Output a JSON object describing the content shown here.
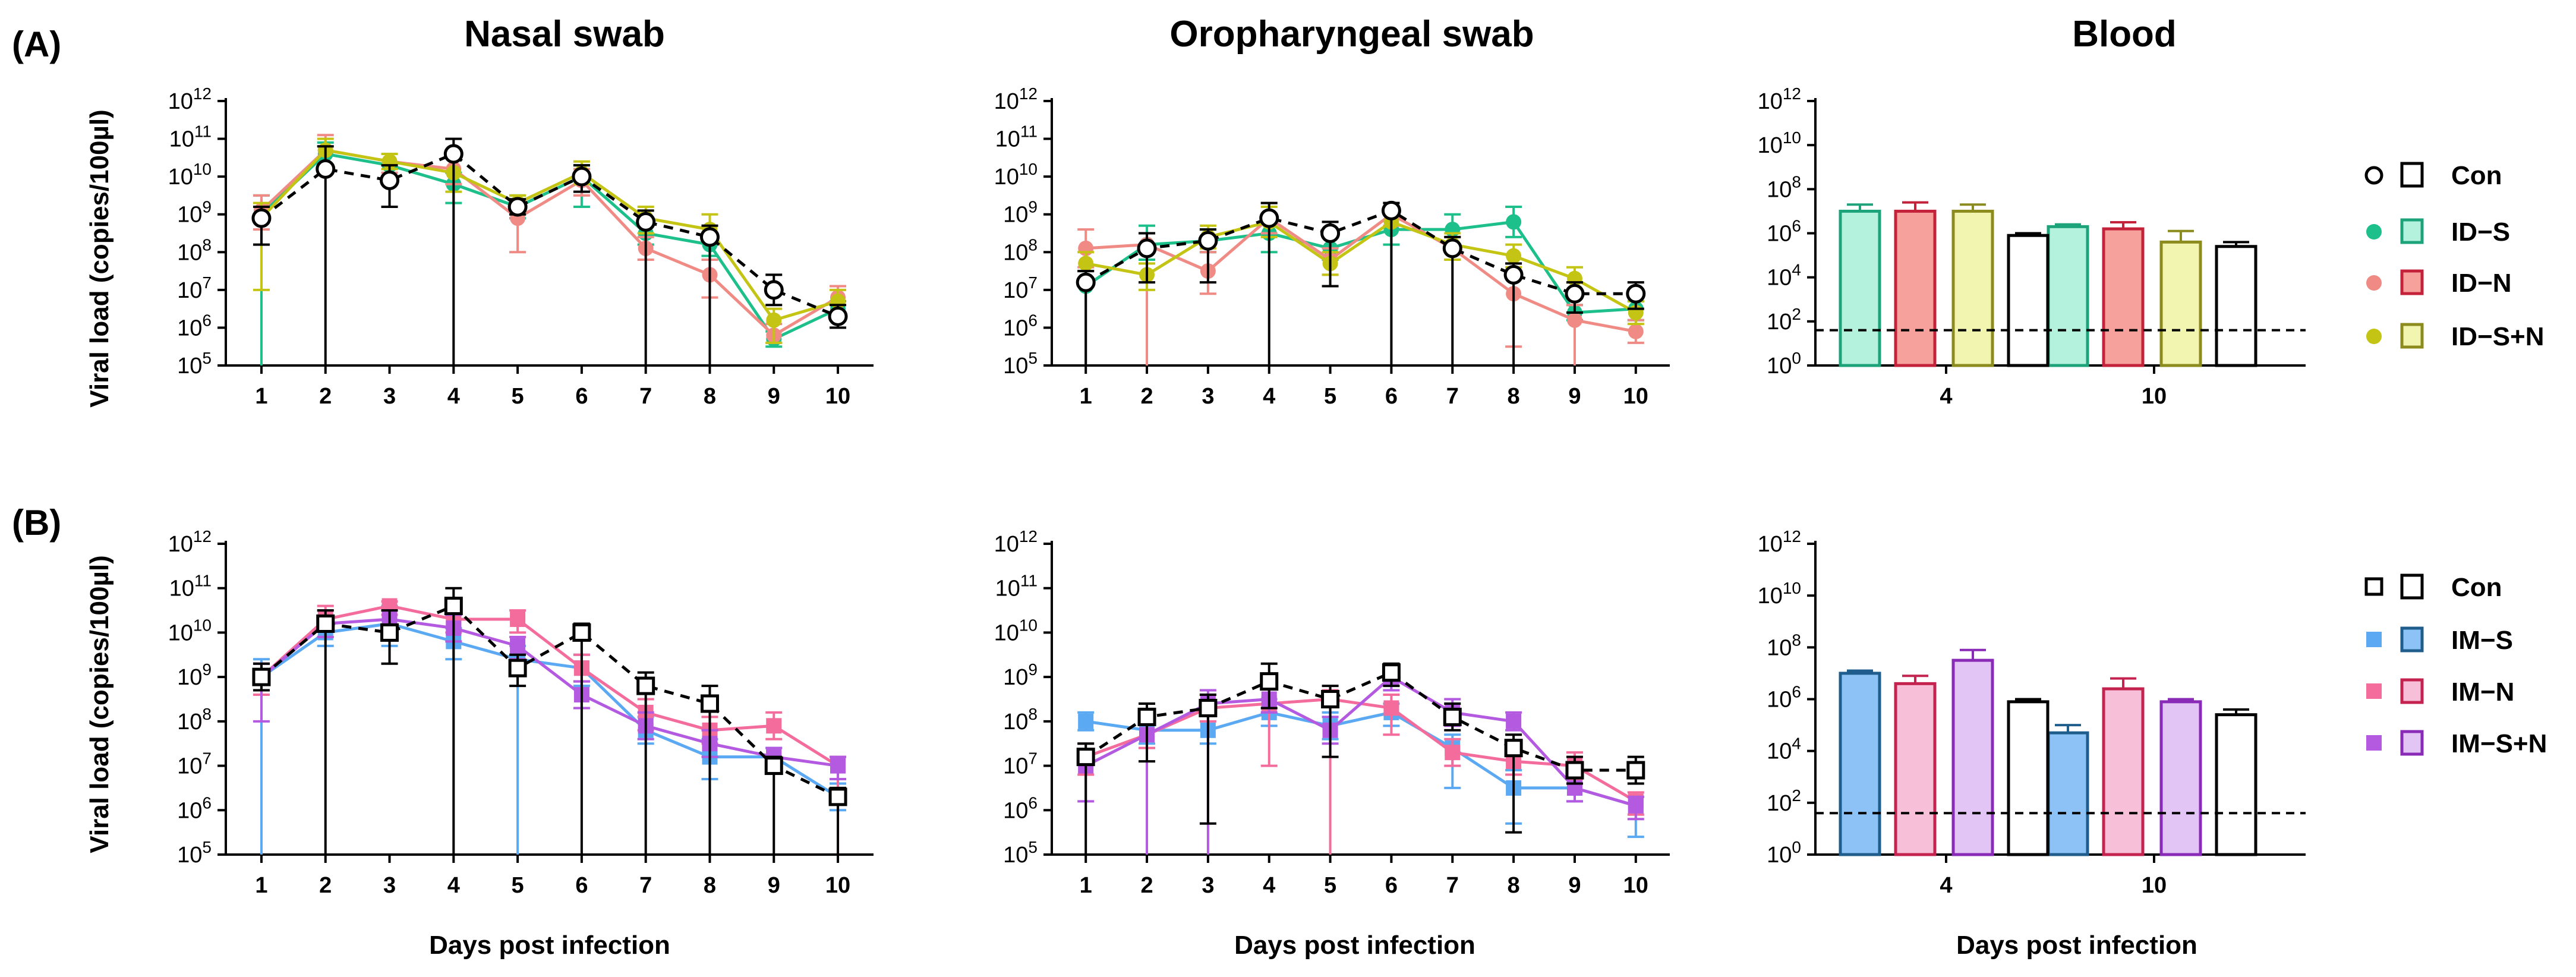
{
  "panel_labels": [
    "(A)",
    "(B)"
  ],
  "column_titles": [
    "Nasal swab",
    "Oropharyngeal swab",
    "Blood"
  ],
  "y_axis_label": "Viral load (copies/100µl)",
  "x_axis_label": "Days post infection",
  "legend_A": [
    {
      "name": "Con",
      "color": "#000000",
      "marker": "circle-open"
    },
    {
      "name": "ID−S",
      "color": "#1DBF8A",
      "marker": "circle"
    },
    {
      "name": "ID−N",
      "color": "#F08A84",
      "marker": "circle"
    },
    {
      "name": "ID−S+N",
      "color": "#C4C414",
      "marker": "circle"
    }
  ],
  "legend_B": [
    {
      "name": "Con",
      "color": "#000000",
      "marker": "square-open"
    },
    {
      "name": "IM−S",
      "color": "#5AA9F2",
      "marker": "square"
    },
    {
      "name": "IM−N",
      "color": "#F46C9C",
      "marker": "square"
    },
    {
      "name": "IM−S+N",
      "color": "#B35AE0",
      "marker": "square"
    }
  ],
  "bar_styles": {
    "Con": {
      "fill": "#FFFFFF",
      "stroke": "#000000"
    },
    "ID−S": {
      "fill": "#B5F2DD",
      "stroke": "#1DA37A"
    },
    "ID−N": {
      "fill": "#F7A19C",
      "stroke": "#C4223A"
    },
    "ID−S+N": {
      "fill": "#F2F5B0",
      "stroke": "#8C8C1E"
    },
    "IM−S": {
      "fill": "#8CC2F5",
      "stroke": "#1F5E8C"
    },
    "IM−N": {
      "fill": "#F8BFD8",
      "stroke": "#C4224F"
    },
    "IM−S+N": {
      "fill": "#E3C5F5",
      "stroke": "#8A2BB8"
    }
  },
  "chart_data": [
    {
      "id": "A-nasal",
      "type": "line",
      "title": "Nasal swab",
      "xlabel": "",
      "ylabel": "Viral load (copies/100µl)",
      "x": [
        1,
        2,
        3,
        4,
        5,
        6,
        7,
        8,
        9,
        10
      ],
      "y_scale": "log10",
      "ylim_exp": [
        5,
        12
      ],
      "y_tick_labels": [
        "10^5",
        "10^6",
        "10^7",
        "10^8",
        "10^9",
        "10^10",
        "10^11",
        "10^12"
      ],
      "series": [
        {
          "name": "ID−S",
          "color": "#1DBF8A",
          "marker": "circle",
          "log10_values": [
            9.0,
            10.6,
            10.3,
            9.8,
            9.2,
            10.0,
            8.5,
            8.2,
            5.7,
            6.5
          ],
          "err_up": [
            0.5,
            0.3,
            0.3,
            0.3,
            0.3,
            0.3,
            0.3,
            0.3,
            0.2,
            0.2
          ],
          "err_down_to_exp": [
            5,
            10.3,
            10.0,
            9.3,
            8.9,
            9.2,
            8.2,
            7.9,
            5.5,
            6.3
          ]
        },
        {
          "name": "ID−N",
          "color": "#F08A84",
          "marker": "circle",
          "log10_values": [
            9.1,
            10.7,
            10.4,
            10.2,
            8.9,
            9.9,
            8.1,
            7.4,
            5.8,
            6.8
          ],
          "err_up": [
            0.4,
            0.4,
            0.2,
            0.3,
            0.3,
            0.3,
            0.3,
            0.4,
            0.3,
            0.3
          ],
          "err_down_to_exp": [
            8.6,
            10.3,
            10.1,
            9.8,
            8.0,
            9.5,
            7.8,
            6.8,
            5.6,
            6.4
          ]
        },
        {
          "name": "ID−S+N",
          "color": "#C4C414",
          "marker": "circle",
          "log10_values": [
            8.9,
            10.7,
            10.4,
            10.1,
            9.3,
            10.1,
            8.9,
            8.6,
            6.2,
            6.7
          ],
          "err_up": [
            0.4,
            0.3,
            0.2,
            0.4,
            0.2,
            0.3,
            0.3,
            0.4,
            0.3,
            0.3
          ],
          "err_down_to_exp": [
            7.0,
            10.3,
            10.2,
            9.6,
            9.0,
            9.8,
            8.5,
            8.3,
            5.6,
            6.4
          ]
        },
        {
          "name": "Con",
          "color": "#000000",
          "marker": "circle-open",
          "dashed": true,
          "log10_values": [
            8.9,
            10.2,
            9.9,
            10.6,
            9.2,
            10.0,
            8.8,
            8.4,
            7.0,
            6.3
          ],
          "err_up": [
            0.3,
            0.6,
            0.4,
            0.4,
            0.2,
            0.3,
            0.3,
            0.3,
            0.4,
            0.3
          ],
          "err_down_to_exp": [
            8.2,
            5,
            9.2,
            5,
            9.0,
            9.6,
            5,
            5,
            6.6,
            6.0
          ]
        }
      ]
    },
    {
      "id": "A-oro",
      "type": "line",
      "title": "Oropharyngeal swab",
      "xlabel": "",
      "ylabel": "",
      "x": [
        1,
        2,
        3,
        4,
        5,
        6,
        7,
        8,
        9,
        10
      ],
      "y_scale": "log10",
      "ylim_exp": [
        5,
        12
      ],
      "y_tick_labels": [
        "10^5",
        "10^6",
        "10^7",
        "10^8",
        "10^9",
        "10^10",
        "10^11",
        "10^12"
      ],
      "series": [
        {
          "name": "ID−S",
          "color": "#1DBF8A",
          "marker": "circle",
          "log10_values": [
            7.1,
            8.2,
            8.3,
            8.5,
            8.1,
            8.6,
            8.6,
            8.8,
            6.4,
            6.5
          ],
          "err_up": [
            0.4,
            0.5,
            0.3,
            0.4,
            0.3,
            0.4,
            0.4,
            0.4,
            0.2,
            0.2
          ],
          "err_down_to_exp": [
            5,
            7.8,
            8.0,
            8.0,
            7.8,
            8.2,
            8.2,
            8.4,
            6.2,
            6.2
          ]
        },
        {
          "name": "ID−N",
          "color": "#F08A84",
          "marker": "circle",
          "log10_values": [
            8.1,
            8.2,
            7.5,
            8.9,
            7.8,
            9.0,
            8.1,
            6.9,
            6.2,
            5.9
          ],
          "err_up": [
            0.5,
            0.3,
            0.5,
            0.4,
            0.3,
            0.3,
            0.3,
            0.5,
            0.4,
            0.3
          ],
          "err_down_to_exp": [
            7.6,
            5,
            6.9,
            8.5,
            7.4,
            8.7,
            7.8,
            5.5,
            5,
            5.6
          ]
        },
        {
          "name": "ID−S+N",
          "color": "#C4C414",
          "marker": "circle",
          "log10_values": [
            7.7,
            7.4,
            8.4,
            8.8,
            7.7,
            8.8,
            8.2,
            7.9,
            7.3,
            6.4
          ],
          "err_up": [
            0.3,
            0.3,
            0.3,
            0.4,
            0.3,
            0.3,
            0.3,
            0.3,
            0.3,
            0.3
          ],
          "err_down_to_exp": [
            7.3,
            7.0,
            8.1,
            8.4,
            7.4,
            5,
            7.8,
            7.6,
            7.0,
            6.1
          ]
        },
        {
          "name": "Con",
          "color": "#000000",
          "marker": "circle-open",
          "dashed": true,
          "log10_values": [
            7.2,
            8.1,
            8.3,
            8.9,
            8.5,
            9.1,
            8.1,
            7.4,
            6.9,
            6.9
          ],
          "err_up": [
            0.3,
            0.4,
            0.3,
            0.4,
            0.3,
            0.2,
            0.3,
            0.3,
            0.3,
            0.3
          ],
          "err_down_to_exp": [
            5,
            7.2,
            7.2,
            5,
            7.1,
            5,
            5,
            5,
            6.4,
            6.5
          ]
        }
      ]
    },
    {
      "id": "A-blood",
      "type": "bar",
      "title": "Blood",
      "xlabel": "",
      "ylabel": "",
      "categories": [
        "4",
        "10"
      ],
      "y_scale": "log10",
      "ylim_exp": [
        0,
        12
      ],
      "y_tick_labels": [
        "10^0",
        "10^2",
        "10^4",
        "10^6",
        "10^8",
        "10^10",
        "10^12"
      ],
      "threshold_exp": 1.6,
      "series": [
        {
          "name": "ID−S",
          "log10_values": [
            7.0,
            6.3
          ],
          "err_up": [
            0.3,
            0.1
          ]
        },
        {
          "name": "ID−N",
          "log10_values": [
            7.0,
            6.2
          ],
          "err_up": [
            0.4,
            0.3
          ]
        },
        {
          "name": "ID−S+N",
          "log10_values": [
            7.0,
            5.6
          ],
          "err_up": [
            0.3,
            0.5
          ]
        },
        {
          "name": "Con",
          "log10_values": [
            5.9,
            5.4
          ],
          "err_up": [
            0.1,
            0.2
          ]
        }
      ]
    },
    {
      "id": "B-nasal",
      "type": "line",
      "title": "",
      "xlabel": "Days post infection",
      "ylabel": "Viral load (copies/100µl)",
      "x": [
        1,
        2,
        3,
        4,
        5,
        6,
        7,
        8,
        9,
        10
      ],
      "y_scale": "log10",
      "ylim_exp": [
        5,
        12
      ],
      "y_tick_labels": [
        "10^5",
        "10^6",
        "10^7",
        "10^8",
        "10^9",
        "10^10",
        "10^11",
        "10^12"
      ],
      "series": [
        {
          "name": "IM−S",
          "color": "#5AA9F2",
          "marker": "square",
          "log10_values": [
            9.0,
            10.0,
            10.2,
            9.8,
            9.4,
            9.2,
            7.8,
            7.2,
            7.2,
            6.3
          ],
          "err_up": [
            0.4,
            0.3,
            0.4,
            0.3,
            0.3,
            0.3,
            0.3,
            0.4,
            0.2,
            0.3
          ],
          "err_down_to_exp": [
            5,
            9.7,
            9.7,
            9.4,
            5,
            8.8,
            7.5,
            6.7,
            6.9,
            6.0
          ]
        },
        {
          "name": "IM−N",
          "color": "#F46C9C",
          "marker": "square",
          "log10_values": [
            9.0,
            10.3,
            10.6,
            10.3,
            10.3,
            9.2,
            8.2,
            7.8,
            7.9,
            7.0
          ],
          "err_up": [
            0.3,
            0.3,
            0.1,
            0.2,
            0.2,
            0.3,
            0.3,
            0.3,
            0.3,
            0.2
          ],
          "err_down_to_exp": [
            8.6,
            9.9,
            10.4,
            10.0,
            10.0,
            8.9,
            7.8,
            7.5,
            7.6,
            5
          ]
        },
        {
          "name": "IM−S+N",
          "color": "#B35AE0",
          "marker": "square",
          "log10_values": [
            9.0,
            10.2,
            10.3,
            10.1,
            9.7,
            8.6,
            7.9,
            7.5,
            7.2,
            7.0
          ],
          "err_up": [
            0.3,
            0.3,
            0.2,
            0.3,
            0.2,
            0.3,
            0.3,
            0.3,
            0.2,
            0.2
          ],
          "err_down_to_exp": [
            8.0,
            9.9,
            10.0,
            9.8,
            9.4,
            8.3,
            7.6,
            7.2,
            6.9,
            6.7
          ]
        },
        {
          "name": "Con",
          "color": "#000000",
          "marker": "square-open",
          "dashed": true,
          "log10_values": [
            9.0,
            10.2,
            10.0,
            10.6,
            9.2,
            10.0,
            8.8,
            8.4,
            7.0,
            6.3
          ],
          "err_up": [
            0.3,
            0.3,
            0.5,
            0.4,
            0.3,
            0.2,
            0.3,
            0.4,
            0.2,
            0.2
          ],
          "err_down_to_exp": [
            8.7,
            5,
            9.3,
            5,
            8.8,
            5,
            5,
            5,
            5,
            5
          ]
        }
      ]
    },
    {
      "id": "B-oro",
      "type": "line",
      "title": "",
      "xlabel": "Days post infection",
      "ylabel": "",
      "x": [
        1,
        2,
        3,
        4,
        5,
        6,
        7,
        8,
        9,
        10
      ],
      "y_scale": "log10",
      "ylim_exp": [
        5,
        12
      ],
      "y_tick_labels": [
        "10^5",
        "10^6",
        "10^7",
        "10^8",
        "10^9",
        "10^10",
        "10^11",
        "10^12"
      ],
      "series": [
        {
          "name": "IM−S",
          "color": "#5AA9F2",
          "marker": "square",
          "log10_values": [
            8.0,
            7.8,
            7.8,
            8.2,
            7.9,
            8.2,
            7.4,
            6.5,
            6.5,
            6.1
          ],
          "err_up": [
            0.2,
            0.3,
            0.4,
            0.3,
            0.3,
            0.2,
            0.3,
            0.4,
            0.3,
            0.2
          ],
          "err_down_to_exp": [
            7.8,
            7.5,
            7.5,
            7.9,
            7.6,
            7.9,
            6.5,
            5.7,
            6.2,
            5.4
          ]
        },
        {
          "name": "IM−N",
          "color": "#F46C9C",
          "marker": "square",
          "log10_values": [
            7.2,
            7.7,
            8.3,
            8.4,
            8.5,
            8.3,
            7.3,
            7.1,
            7.0,
            6.2
          ],
          "err_up": [
            0.3,
            0.3,
            0.3,
            0.4,
            0.2,
            0.3,
            0.3,
            0.3,
            0.3,
            0.2
          ],
          "err_down_to_exp": [
            6.8,
            7.4,
            8.0,
            7.0,
            5,
            7.7,
            7.0,
            6.8,
            6.7,
            5.9
          ]
        },
        {
          "name": "IM−S+N",
          "color": "#B35AE0",
          "marker": "square",
          "log10_values": [
            7.0,
            7.7,
            8.4,
            8.5,
            7.8,
            9.0,
            8.2,
            8.0,
            6.5,
            6.1
          ],
          "err_up": [
            0.3,
            0.3,
            0.3,
            0.3,
            0.3,
            0.2,
            0.3,
            0.2,
            0.3,
            0.2
          ],
          "err_down_to_exp": [
            6.2,
            5,
            5,
            8.2,
            7.5,
            8.7,
            7.9,
            7.8,
            6.2,
            5.8
          ]
        },
        {
          "name": "Con",
          "color": "#000000",
          "marker": "square-open",
          "dashed": true,
          "log10_values": [
            7.2,
            8.1,
            8.3,
            8.9,
            8.5,
            9.1,
            8.1,
            7.4,
            6.9,
            6.9
          ],
          "err_up": [
            0.3,
            0.3,
            0.3,
            0.4,
            0.3,
            0.2,
            0.3,
            0.3,
            0.3,
            0.3
          ],
          "err_down_to_exp": [
            5,
            7.1,
            5.7,
            8.3,
            7.2,
            8.8,
            7.8,
            5.5,
            6.6,
            6.6
          ]
        }
      ]
    },
    {
      "id": "B-blood",
      "type": "bar",
      "title": "",
      "xlabel": "Days post infection",
      "ylabel": "",
      "categories": [
        "4",
        "10"
      ],
      "y_scale": "log10",
      "ylim_exp": [
        0,
        12
      ],
      "y_tick_labels": [
        "10^0",
        "10^2",
        "10^4",
        "10^6",
        "10^8",
        "10^10",
        "10^12"
      ],
      "threshold_exp": 1.6,
      "series": [
        {
          "name": "IM−S",
          "log10_values": [
            7.0,
            4.7
          ],
          "err_up": [
            0.1,
            0.3
          ]
        },
        {
          "name": "IM−N",
          "log10_values": [
            6.6,
            6.4
          ],
          "err_up": [
            0.3,
            0.4
          ]
        },
        {
          "name": "IM−S+N",
          "log10_values": [
            7.5,
            5.9
          ],
          "err_up": [
            0.4,
            0.1
          ]
        },
        {
          "name": "Con",
          "log10_values": [
            5.9,
            5.4
          ],
          "err_up": [
            0.1,
            0.2
          ]
        }
      ]
    }
  ]
}
